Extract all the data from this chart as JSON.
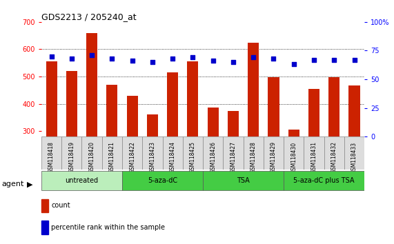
{
  "title": "GDS2213 / 205240_at",
  "samples": [
    "GSM118418",
    "GSM118419",
    "GSM118420",
    "GSM118421",
    "GSM118422",
    "GSM118423",
    "GSM118424",
    "GSM118425",
    "GSM118426",
    "GSM118427",
    "GSM118428",
    "GSM118429",
    "GSM118430",
    "GSM118431",
    "GSM118432",
    "GSM118433"
  ],
  "counts": [
    555,
    520,
    660,
    470,
    430,
    362,
    515,
    555,
    387,
    375,
    623,
    497,
    305,
    455,
    497,
    468
  ],
  "percentiles": [
    70,
    68,
    71,
    68,
    66,
    65,
    68,
    69,
    66,
    65,
    69,
    68,
    63,
    67,
    67,
    67
  ],
  "groups": [
    {
      "label": "untreated",
      "start": 0,
      "end": 4,
      "color": "#bbeebb"
    },
    {
      "label": "5-aza-dC",
      "start": 4,
      "end": 8,
      "color": "#44cc44"
    },
    {
      "label": "TSA",
      "start": 8,
      "end": 12,
      "color": "#44cc44"
    },
    {
      "label": "5-aza-dC plus TSA",
      "start": 12,
      "end": 16,
      "color": "#44cc44"
    }
  ],
  "ylim_left": [
    280,
    700
  ],
  "ylim_right": [
    0,
    100
  ],
  "yticks_left": [
    300,
    400,
    500,
    600,
    700
  ],
  "yticks_right": [
    0,
    25,
    50,
    75,
    100
  ],
  "bar_color": "#CC2200",
  "dot_color": "#0000CC",
  "bar_bottom": 280,
  "background_color": "#ffffff",
  "agent_label": "agent",
  "legend_count": "count",
  "legend_percentile": "percentile rank within the sample",
  "gridlines": [
    400,
    500,
    600
  ],
  "dot_size": 22
}
